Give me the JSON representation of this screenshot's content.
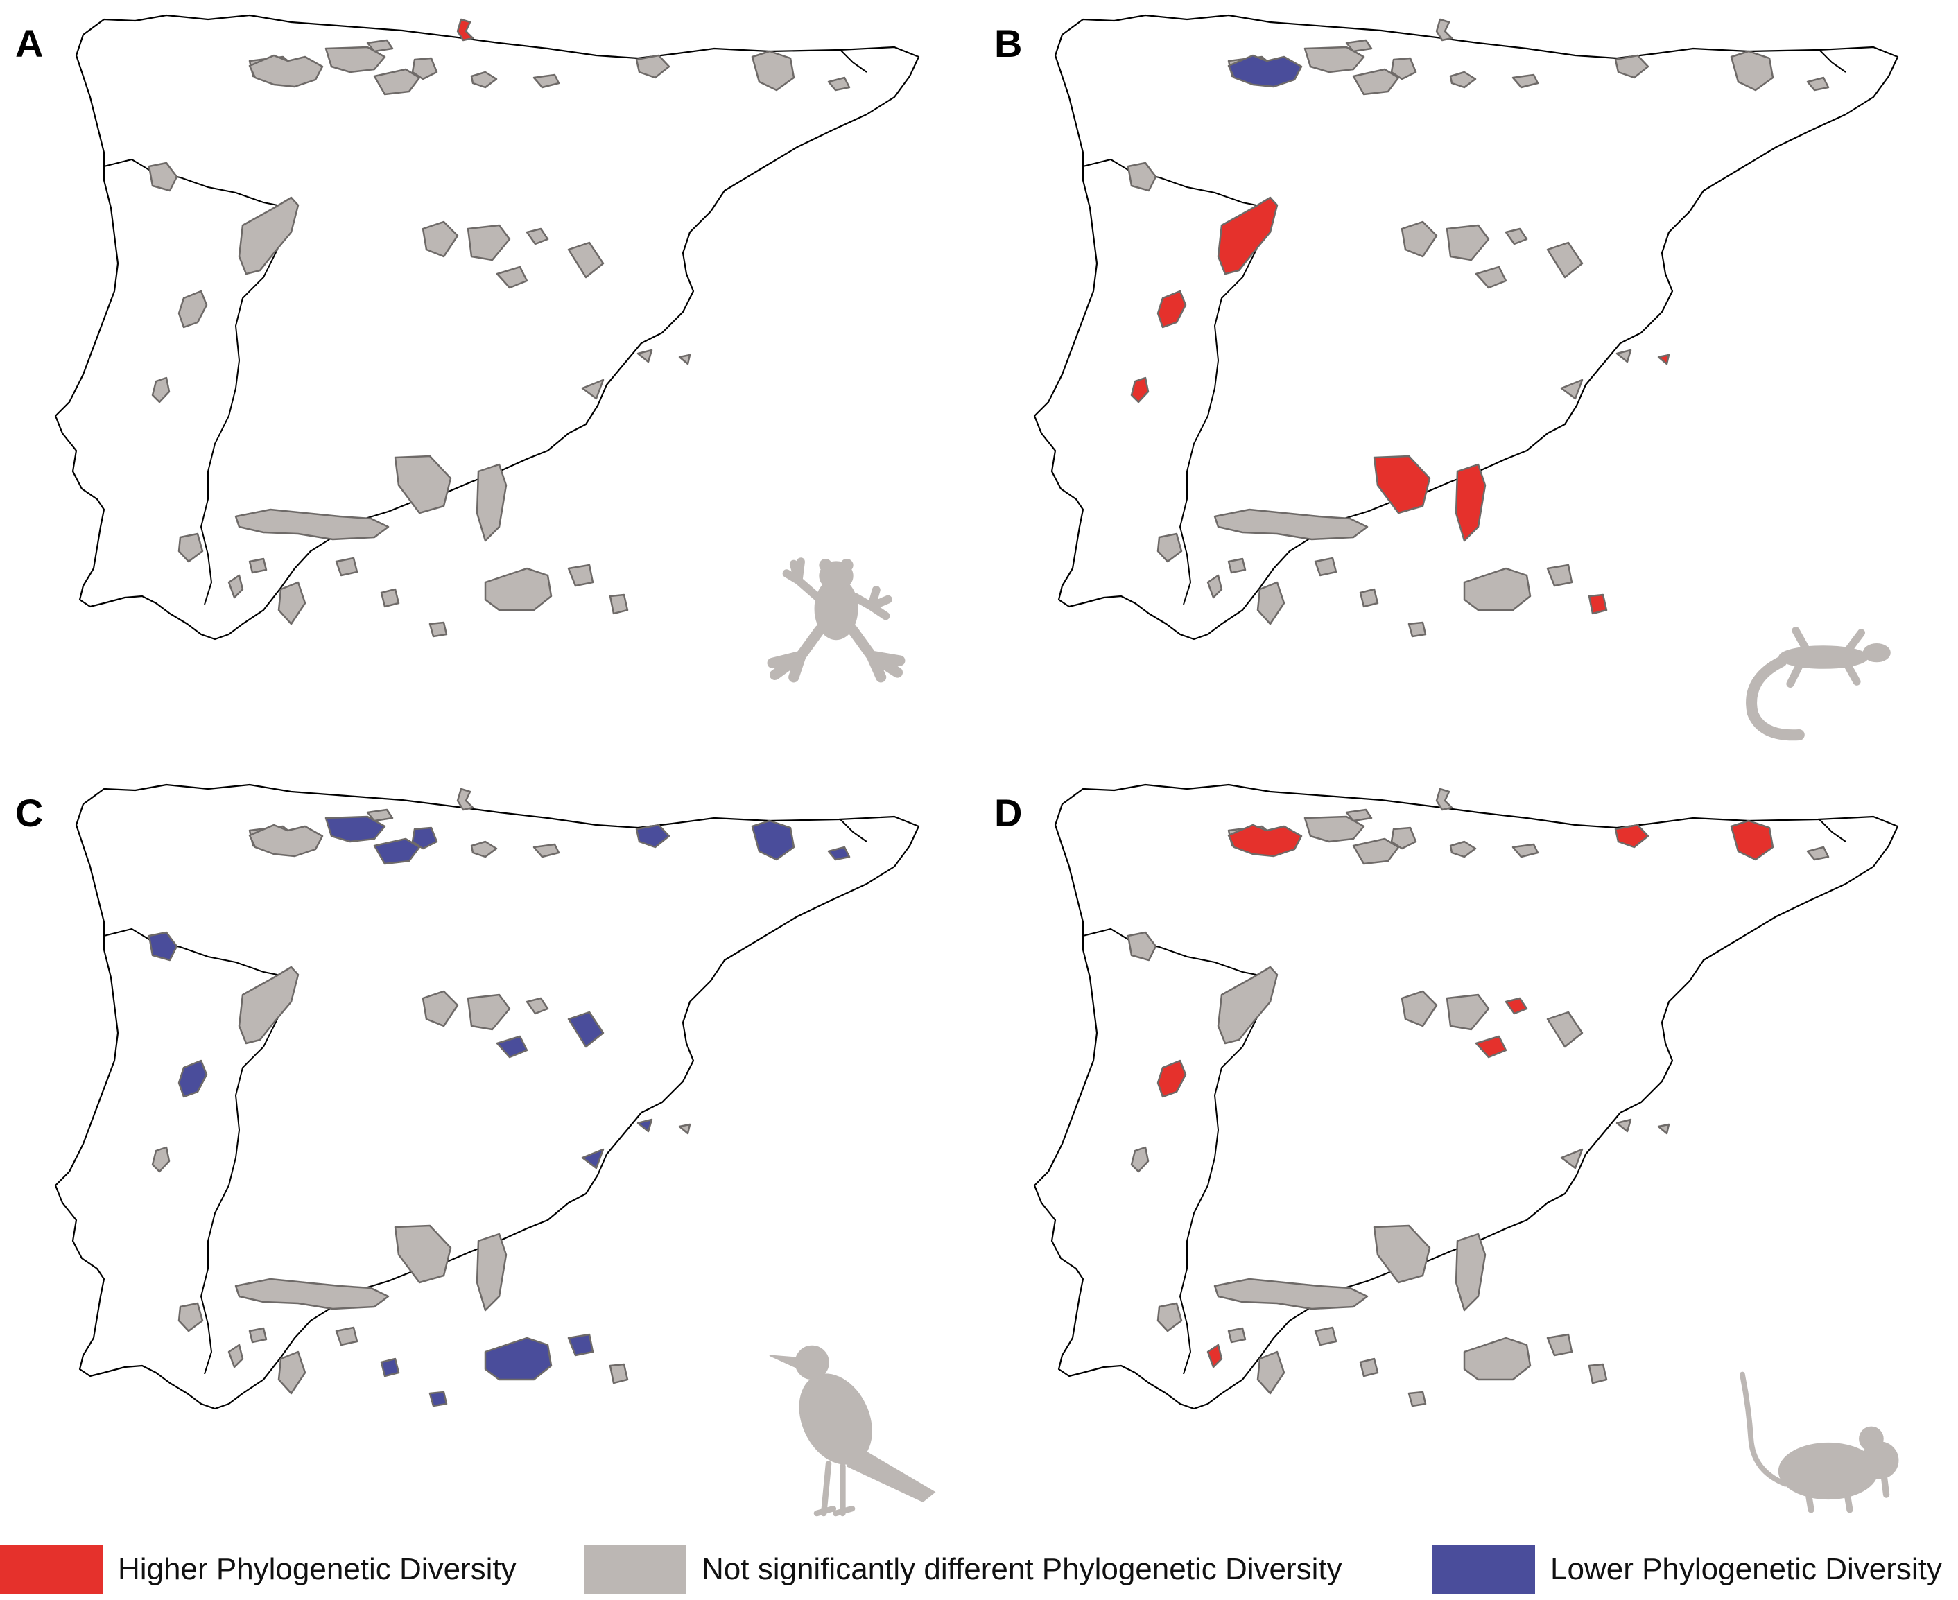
{
  "panels": [
    {
      "id": "A",
      "letter": "A",
      "taxon_icon": "frog-icon",
      "highlights": [
        {
          "shape": "n1",
          "status": "higher"
        }
      ]
    },
    {
      "id": "B",
      "letter": "B",
      "taxon_icon": "lizard-icon",
      "highlights": [
        {
          "shape": "nw1",
          "status": "lower"
        },
        {
          "shape": "ne5",
          "status": "lower"
        },
        {
          "shape": "w1",
          "status": "higher"
        },
        {
          "shape": "w2",
          "status": "higher"
        },
        {
          "shape": "w3",
          "status": "higher"
        },
        {
          "shape": "se3",
          "status": "higher"
        },
        {
          "shape": "s1",
          "status": "higher"
        },
        {
          "shape": "s2",
          "status": "higher"
        },
        {
          "shape": "s6",
          "status": "higher"
        }
      ]
    },
    {
      "id": "C",
      "letter": "C",
      "taxon_icon": "bird-icon",
      "highlights": [
        {
          "shape": "n2",
          "status": "lower"
        },
        {
          "shape": "n3",
          "status": "lower"
        },
        {
          "shape": "n4",
          "status": "lower"
        },
        {
          "shape": "n6",
          "status": "lower"
        },
        {
          "shape": "n7",
          "status": "lower"
        },
        {
          "shape": "n8",
          "status": "lower"
        },
        {
          "shape": "nw2",
          "status": "lower"
        },
        {
          "shape": "w2",
          "status": "lower"
        },
        {
          "shape": "c3",
          "status": "lower"
        },
        {
          "shape": "c5",
          "status": "lower"
        },
        {
          "shape": "se1",
          "status": "lower"
        },
        {
          "shape": "se2",
          "status": "lower"
        },
        {
          "shape": "s3",
          "status": "lower"
        },
        {
          "shape": "s4",
          "status": "lower"
        },
        {
          "shape": "s5",
          "status": "lower"
        },
        {
          "shape": "s7",
          "status": "lower"
        }
      ]
    },
    {
      "id": "D",
      "letter": "D",
      "taxon_icon": "mouse-icon",
      "highlights": [
        {
          "shape": "nw1",
          "status": "higher"
        },
        {
          "shape": "n6",
          "status": "higher"
        },
        {
          "shape": "n7",
          "status": "higher"
        },
        {
          "shape": "c3",
          "status": "higher"
        },
        {
          "shape": "c4",
          "status": "higher"
        },
        {
          "shape": "w2",
          "status": "higher"
        },
        {
          "shape": "w4",
          "status": "higher"
        }
      ]
    }
  ],
  "colors": {
    "higher": "#e5312c",
    "neutral": "#bcb7b4",
    "lower": "#4a4d9b",
    "silhouette": "#bcb7b4"
  },
  "legend": [
    {
      "status": "higher",
      "label": "Higher Phylogenetic Diversity"
    },
    {
      "status": "neutral",
      "label": "Not significantly different Phylogenetic Diversity"
    },
    {
      "status": "lower",
      "label": "Lower Phylogenetic Diversity"
    }
  ]
}
